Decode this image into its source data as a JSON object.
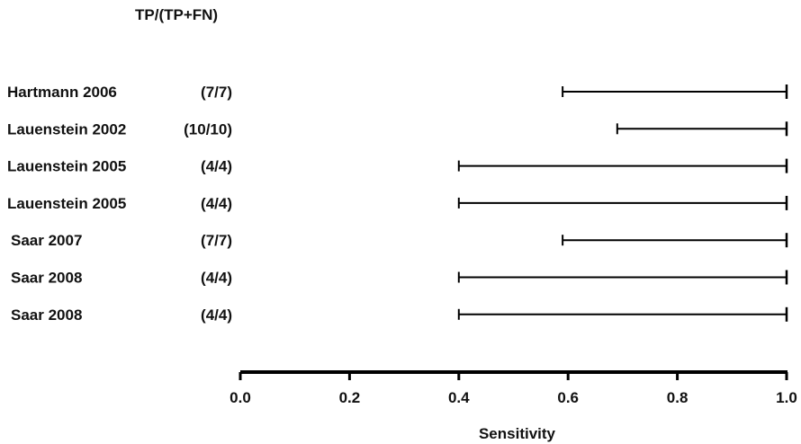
{
  "chart_data": {
    "type": "forest",
    "header": "TP/(TP+FN)",
    "xlabel": "Sensitivity",
    "xlim": [
      0.0,
      1.0
    ],
    "xticks": [
      "0.0",
      "0.2",
      "0.4",
      "0.6",
      "0.8",
      "1.0"
    ],
    "rows": [
      {
        "study": "Hartmann 2006",
        "count": "(7/7)",
        "lower": 0.59,
        "upper": 1.0
      },
      {
        "study": "Lauenstein 2002",
        "count": "(10/10)",
        "lower": 0.69,
        "upper": 1.0
      },
      {
        "study": "Lauenstein 2005",
        "count": "(4/4)",
        "lower": 0.4,
        "upper": 1.0
      },
      {
        "study": "Lauenstein 2005",
        "count": "(4/4)",
        "lower": 0.4,
        "upper": 1.0
      },
      {
        "study": "Saar 2007",
        "count": "(7/7)",
        "lower": 0.59,
        "upper": 1.0
      },
      {
        "study": "Saar 2008",
        "count": "(4/4)",
        "lower": 0.4,
        "upper": 1.0
      },
      {
        "study": "Saar 2008",
        "count": "(4/4)",
        "lower": 0.4,
        "upper": 1.0
      }
    ]
  }
}
